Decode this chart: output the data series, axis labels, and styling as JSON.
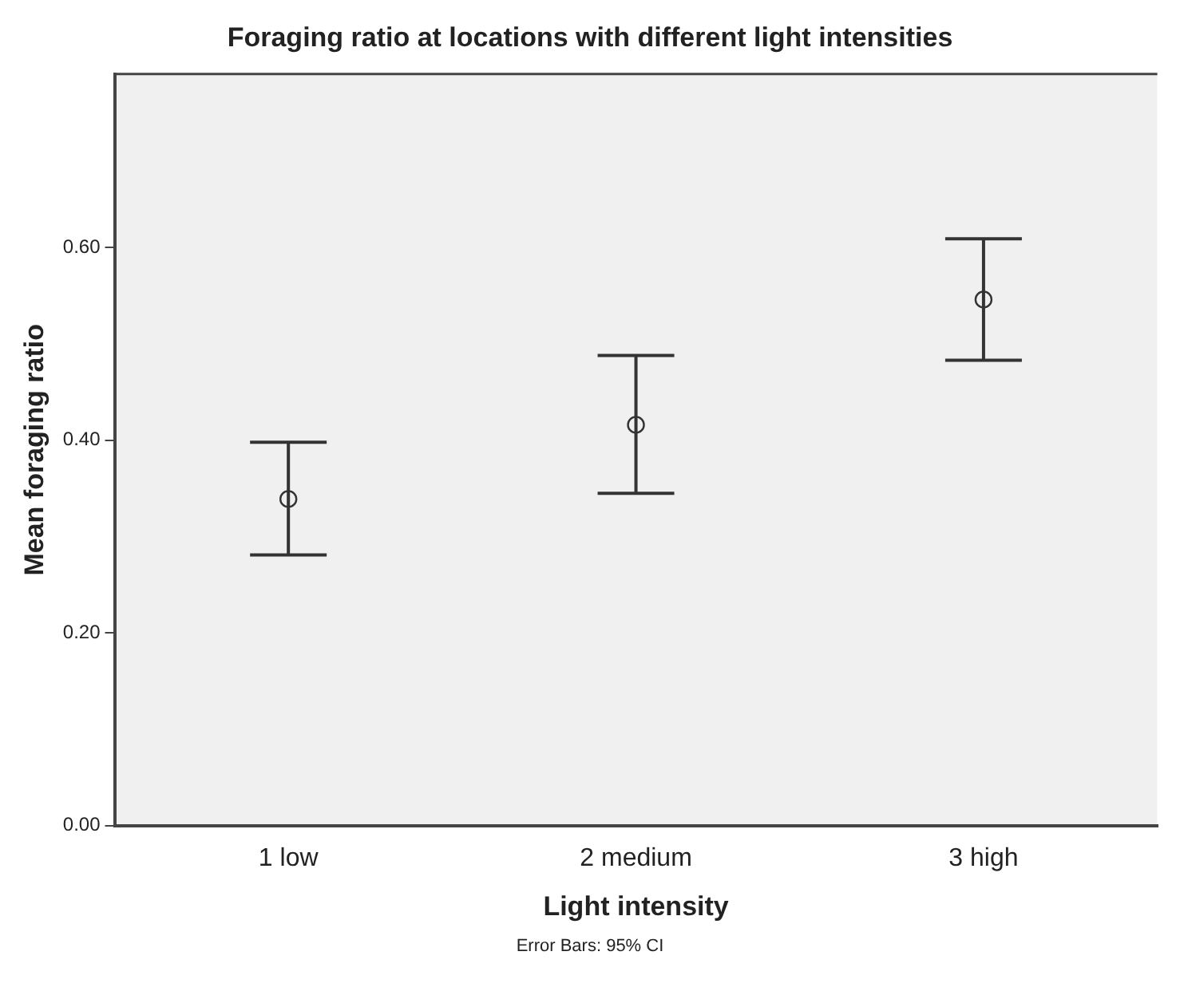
{
  "chart_data": {
    "type": "scatter",
    "title": "Foraging ratio at locations with different light intensities",
    "xlabel": "Light intensity",
    "ylabel": "Mean foraging ratio",
    "categories": [
      "1 low",
      "2 medium",
      "3 high"
    ],
    "values": [
      0.339,
      0.416,
      0.546
    ],
    "errors": [
      [
        0.281,
        0.398
      ],
      [
        0.345,
        0.488
      ],
      [
        0.483,
        0.609
      ]
    ],
    "color": "#333333",
    "marker": "circle",
    "ylim": [
      0,
      0.78
    ],
    "yticks": [
      {
        "value": 0,
        "label": "0.00"
      },
      {
        "value": 0.2,
        "label": "0.20"
      },
      {
        "value": 0.4,
        "label": "0.40"
      },
      {
        "value": 0.6,
        "label": "0.60"
      }
    ],
    "grid": false,
    "legend": false,
    "annotations": [
      "Error Bars: 95% CI"
    ]
  }
}
